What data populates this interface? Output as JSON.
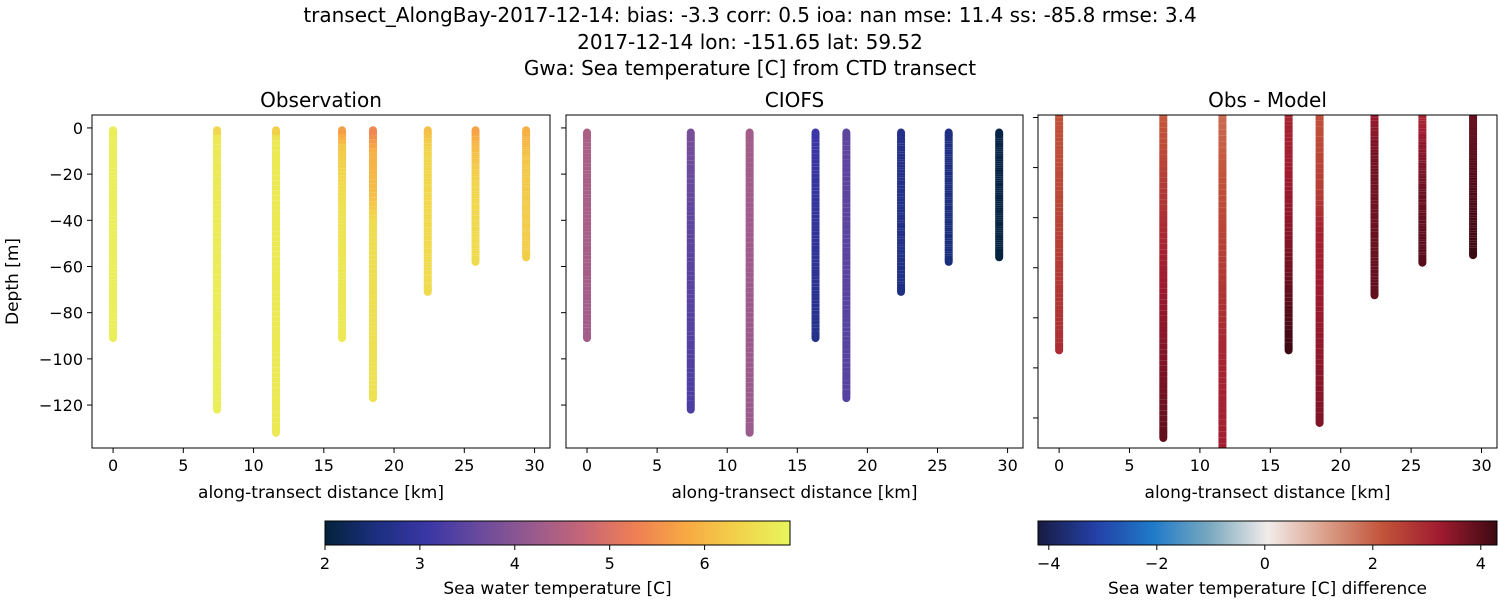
{
  "title_lines": [
    "transect_AlongBay-2017-12-14: bias: -3.3  corr: 0.5  ioa: nan  mse: 11.4  ss: -85.8  rmse: 3.4",
    "2017-12-14 lon: -151.65 lat: 59.52",
    "Gwa: Sea temperature [C] from CTD transect"
  ],
  "chart_data": [
    {
      "type": "scatter",
      "title": "Observation",
      "xlabel": "along-transect distance [km]",
      "ylabel": "Depth [m]",
      "xlim": [
        -1.5,
        31.1
      ],
      "ylim": [
        -138.6,
        5.6
      ],
      "xticks": [
        0,
        5,
        10,
        15,
        20,
        25,
        30
      ],
      "yticks": [
        0,
        -20,
        -40,
        -60,
        -80,
        -100,
        -120
      ],
      "show_yticklabels": true,
      "colormap": "thermal",
      "profiles": [
        {
          "x": 0,
          "stops": [
            [
              -1,
              6.8
            ],
            [
              -91,
              6.8
            ]
          ]
        },
        {
          "x": 7.4,
          "stops": [
            [
              -1,
              6.3
            ],
            [
              -4,
              6.7
            ],
            [
              -122,
              6.8
            ]
          ]
        },
        {
          "x": 11.6,
          "stops": [
            [
              -1,
              6.2
            ],
            [
              -5,
              6.7
            ],
            [
              -132,
              6.7
            ]
          ]
        },
        {
          "x": 16.3,
          "stops": [
            [
              -1,
              5.6
            ],
            [
              -8,
              6.2
            ],
            [
              -20,
              6.4
            ],
            [
              -35,
              6.6
            ],
            [
              -91,
              6.7
            ]
          ]
        },
        {
          "x": 18.5,
          "stops": [
            [
              -1,
              5.3
            ],
            [
              -10,
              5.9
            ],
            [
              -30,
              6.1
            ],
            [
              -40,
              6.5
            ],
            [
              -117,
              6.6
            ]
          ]
        },
        {
          "x": 22.4,
          "stops": [
            [
              -1,
              6.1
            ],
            [
              -10,
              6.4
            ],
            [
              -71,
              6.5
            ]
          ]
        },
        {
          "x": 25.8,
          "stops": [
            [
              -1,
              5.7
            ],
            [
              -10,
              6.1
            ],
            [
              -25,
              6.4
            ],
            [
              -58,
              6.5
            ]
          ]
        },
        {
          "x": 29.4,
          "stops": [
            [
              -1,
              5.9
            ],
            [
              -15,
              6.2
            ],
            [
              -56,
              6.3
            ]
          ]
        }
      ]
    },
    {
      "type": "scatter",
      "title": "CIOFS",
      "xlabel": "along-transect distance [km]",
      "xlim": [
        -1.5,
        31.1
      ],
      "ylim": [
        -138.6,
        5.6
      ],
      "xticks": [
        0,
        5,
        10,
        15,
        20,
        25,
        30
      ],
      "yticks": [
        0,
        -20,
        -40,
        -60,
        -80,
        -100,
        -120
      ],
      "show_yticklabels": false,
      "colormap": "thermal",
      "profiles": [
        {
          "x": 0,
          "stops": [
            [
              -2,
              4.4
            ],
            [
              -91,
              4.3
            ]
          ]
        },
        {
          "x": 7.4,
          "stops": [
            [
              -2,
              3.8
            ],
            [
              -40,
              3.5
            ],
            [
              -122,
              3.3
            ]
          ]
        },
        {
          "x": 11.6,
          "stops": [
            [
              -2,
              4.3
            ],
            [
              -132,
              4.2
            ]
          ]
        },
        {
          "x": 16.3,
          "stops": [
            [
              -2,
              3.1
            ],
            [
              -50,
              2.9
            ],
            [
              -91,
              2.7
            ]
          ]
        },
        {
          "x": 18.5,
          "stops": [
            [
              -2,
              3.5
            ],
            [
              -117,
              3.4
            ]
          ]
        },
        {
          "x": 22.4,
          "stops": [
            [
              -2,
              2.7
            ],
            [
              -71,
              2.6
            ]
          ]
        },
        {
          "x": 25.8,
          "stops": [
            [
              -2,
              2.6
            ],
            [
              -58,
              2.5
            ]
          ]
        },
        {
          "x": 29.4,
          "stops": [
            [
              -2,
              2.1
            ],
            [
              -56,
              2.05
            ]
          ]
        }
      ]
    },
    {
      "type": "scatter",
      "title": "Obs - Model",
      "xlabel": "along-transect distance [km]",
      "xlim": [
        -1.5,
        31.1
      ],
      "ylim": [
        -132,
        1
      ],
      "xticks": [
        0,
        5,
        10,
        15,
        20,
        25,
        30
      ],
      "yticks": [
        0,
        -20,
        -40,
        -60,
        -80,
        -100,
        -120
      ],
      "show_yticklabels": false,
      "colormap": "balance",
      "profiles": [
        {
          "x": 0,
          "stops": [
            [
              5,
              2.2
            ],
            [
              -30,
              2.4
            ],
            [
              -93,
              2.9
            ]
          ]
        },
        {
          "x": 7.4,
          "stops": [
            [
              5,
              2.0
            ],
            [
              -25,
              2.6
            ],
            [
              -60,
              3.2
            ],
            [
              -128,
              3.9
            ]
          ]
        },
        {
          "x": 11.6,
          "stops": [
            [
              5,
              1.8
            ],
            [
              -40,
              2.4
            ],
            [
              -90,
              3.0
            ],
            [
              -140,
              3.2
            ]
          ]
        },
        {
          "x": 16.3,
          "stops": [
            [
              5,
              3.0
            ],
            [
              -40,
              3.4
            ],
            [
              -93,
              4.3
            ]
          ]
        },
        {
          "x": 18.5,
          "stops": [
            [
              5,
              2.2
            ],
            [
              -30,
              2.6
            ],
            [
              -45,
              3.1
            ],
            [
              -122,
              3.6
            ]
          ]
        },
        {
          "x": 22.4,
          "stops": [
            [
              5,
              3.2
            ],
            [
              -15,
              3.7
            ],
            [
              -71,
              3.9
            ]
          ]
        },
        {
          "x": 25.8,
          "stops": [
            [
              5,
              2.8
            ],
            [
              -10,
              3.4
            ],
            [
              -30,
              3.8
            ],
            [
              -58,
              4.0
            ]
          ]
        },
        {
          "x": 29.4,
          "stops": [
            [
              5,
              3.8
            ],
            [
              -30,
              4.1
            ],
            [
              -55,
              4.3
            ]
          ]
        }
      ]
    }
  ],
  "colorbars": [
    {
      "label": "Sea water temperature [C]",
      "range": [
        2,
        6.9
      ],
      "ticks": [
        "2",
        "3",
        "4",
        "5",
        "6"
      ],
      "colormap": "thermal"
    },
    {
      "label": "Sea water temperature [C] difference",
      "range": [
        -4.2,
        4.3
      ],
      "ticks": [
        "−4",
        "−2",
        "0",
        "2",
        "4"
      ],
      "colormap": "balance"
    }
  ],
  "colormaps": {
    "thermal": [
      "#04223a",
      "#1c2f80",
      "#3b37a6",
      "#6a4a9c",
      "#985a8e",
      "#c66677",
      "#ee7f54",
      "#f8a943",
      "#f2d24a",
      "#e8f65c"
    ],
    "balance": [
      "#181c43",
      "#2440a6",
      "#1f7ac9",
      "#7aa9bf",
      "#f1ecea",
      "#dba08b",
      "#c2543a",
      "#a01b30",
      "#3c0912"
    ]
  }
}
